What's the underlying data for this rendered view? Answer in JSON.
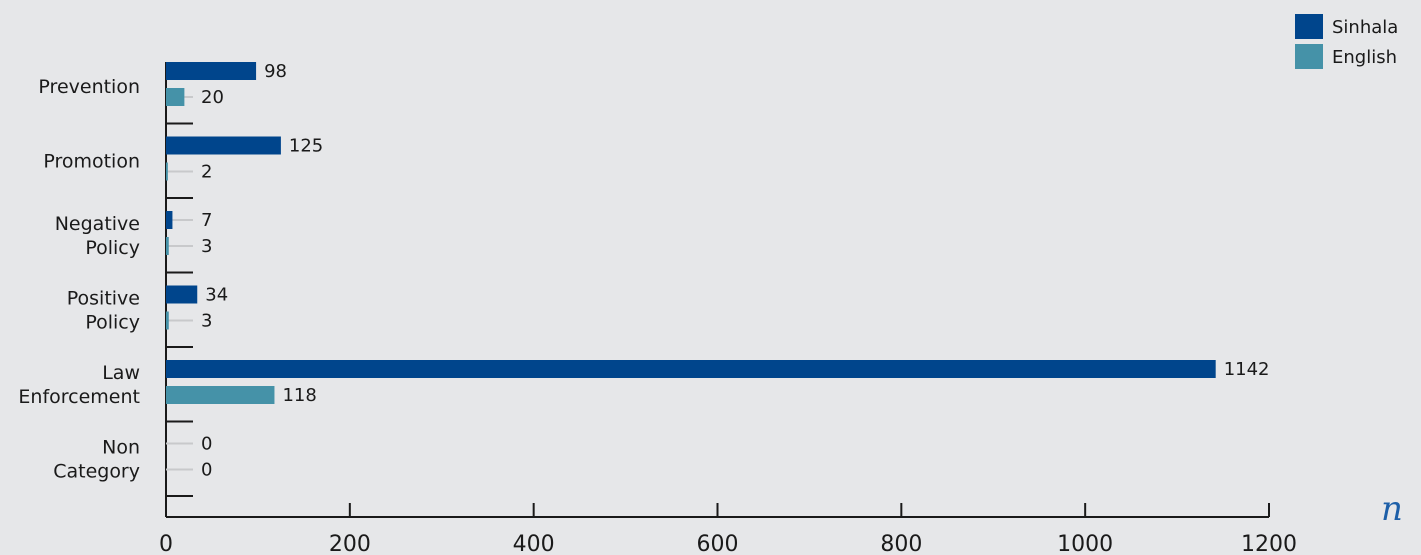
{
  "chart_data": {
    "type": "bar",
    "orientation": "horizontal",
    "categories": [
      [
        "Prevention"
      ],
      [
        "Promotion"
      ],
      [
        "Negative",
        "Policy"
      ],
      [
        "Positive",
        "Policy"
      ],
      [
        "Law",
        "Enforcement"
      ],
      [
        "Non",
        "Category"
      ]
    ],
    "series": [
      {
        "name": "Sinhala",
        "color": "#00458c",
        "values": [
          98,
          125,
          7,
          34,
          1142,
          0
        ]
      },
      {
        "name": "English",
        "color": "#4592a8",
        "values": [
          20,
          2,
          3,
          3,
          118,
          0
        ]
      }
    ],
    "xlim": [
      0,
      1200
    ],
    "xticks": [
      "0",
      "200",
      "400",
      "600",
      "800",
      "1000",
      "1200"
    ],
    "xlabel": "n",
    "xlabel_color": "#1d5fa8",
    "legend_position": "top-right",
    "grid": false,
    "value_labels": true
  }
}
